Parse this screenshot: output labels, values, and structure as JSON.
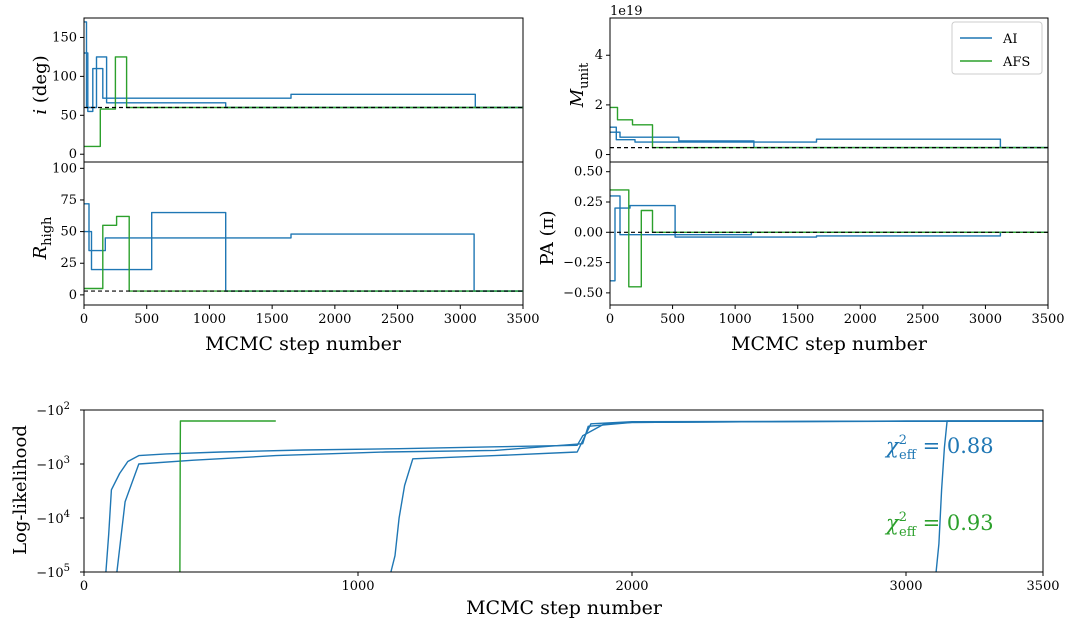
{
  "colors": {
    "AI": "#1f77b4",
    "AFS": "#2ca02c",
    "reference": "#000000"
  },
  "chart_data": [
    {
      "type": "line",
      "panel": "top-left",
      "ylabel_var": "i",
      "ylabel_unit": "(deg)",
      "xlim": [
        0,
        3500
      ],
      "ylim": [
        -10,
        175
      ],
      "yticks": [
        0,
        50,
        100,
        150
      ],
      "xticks": [],
      "reference_value": 60,
      "series": [
        {
          "name": "AI",
          "x": [
            0,
            30,
            30,
            70,
            70,
            150,
            150,
            560,
            560,
            1650,
            1650,
            3120,
            3120,
            3500
          ],
          "y": [
            130,
            130,
            55,
            55,
            110,
            110,
            72,
            72,
            72,
            72,
            77,
            77,
            60,
            60
          ]
        },
        {
          "name": "AI",
          "x": [
            0,
            20,
            20,
            100,
            100,
            180,
            180,
            1130,
            1130,
            3500
          ],
          "y": [
            170,
            170,
            60,
            60,
            125,
            125,
            66,
            66,
            60,
            60
          ]
        },
        {
          "name": "AFS",
          "x": [
            0,
            130,
            130,
            250,
            250,
            340,
            340,
            3500
          ],
          "y": [
            10,
            10,
            58,
            58,
            125,
            125,
            60,
            60
          ]
        }
      ]
    },
    {
      "type": "line",
      "panel": "bottom-left",
      "ylabel_var": "R",
      "ylabel_sub": "high",
      "xlim": [
        0,
        3500
      ],
      "ylim": [
        -8,
        105
      ],
      "yticks": [
        0,
        25,
        50,
        75,
        100
      ],
      "xticks": [
        "0",
        "500",
        "1000",
        "1500",
        "2000",
        "2500",
        "3000",
        "3500"
      ],
      "xticks_num": [
        0,
        500,
        1000,
        1500,
        2000,
        2500,
        3000,
        3500
      ],
      "xlabel": "MCMC step number",
      "reference_value": 3,
      "series": [
        {
          "name": "AI",
          "x": [
            0,
            40,
            40,
            170,
            170,
            1650,
            1650,
            3110,
            3110,
            3500
          ],
          "y": [
            72,
            72,
            35,
            35,
            45,
            45,
            48,
            48,
            3,
            3
          ]
        },
        {
          "name": "AI",
          "x": [
            0,
            60,
            60,
            540,
            540,
            1130,
            1130,
            3500
          ],
          "y": [
            50,
            50,
            20,
            20,
            65,
            65,
            3,
            3
          ]
        },
        {
          "name": "AFS",
          "x": [
            0,
            150,
            150,
            260,
            260,
            360,
            360,
            3500
          ],
          "y": [
            5,
            5,
            55,
            55,
            62,
            62,
            3,
            3
          ]
        }
      ]
    },
    {
      "type": "line",
      "panel": "top-right",
      "ylabel_var": "M",
      "ylabel_sub": "unit",
      "offset_text": "1e19",
      "xlim": [
        0,
        3500
      ],
      "ylim": [
        -0.3,
        5.5
      ],
      "yticks": [
        0,
        2,
        4
      ],
      "xticks": [],
      "reference_value": 0.28,
      "legend": {
        "placement": "top-right",
        "entries": [
          "AI",
          "AFS"
        ]
      },
      "series": [
        {
          "name": "AI",
          "x": [
            0,
            50,
            50,
            200,
            200,
            1650,
            1650,
            3120,
            3120,
            3500
          ],
          "y": [
            1.1,
            1.1,
            0.6,
            0.6,
            0.5,
            0.5,
            0.62,
            0.62,
            0.28,
            0.28
          ]
        },
        {
          "name": "AI",
          "x": [
            0,
            80,
            80,
            550,
            550,
            1150,
            1150,
            3500
          ],
          "y": [
            0.9,
            0.9,
            0.7,
            0.7,
            0.55,
            0.55,
            0.28,
            0.28
          ]
        },
        {
          "name": "AFS",
          "x": [
            0,
            60,
            60,
            180,
            180,
            340,
            340,
            3500
          ],
          "y": [
            1.9,
            1.9,
            1.4,
            1.4,
            1.2,
            1.2,
            0.28,
            0.28
          ]
        }
      ]
    },
    {
      "type": "line",
      "panel": "bottom-right",
      "ylabel_var": "PA",
      "ylabel_unit": "(π)",
      "xlim": [
        0,
        3500
      ],
      "ylim": [
        -0.6,
        0.58
      ],
      "yticks": [
        -0.5,
        -0.25,
        0.0,
        0.25,
        0.5
      ],
      "ytick_labels": [
        "−0.50",
        "−0.25",
        "0.00",
        "0.25",
        "0.50"
      ],
      "xticks": [
        "0",
        "500",
        "1000",
        "1500",
        "2000",
        "2500",
        "3000",
        "3500"
      ],
      "xticks_num": [
        0,
        500,
        1000,
        1500,
        2000,
        2500,
        3000,
        3500
      ],
      "xlabel": "MCMC step number",
      "reference_value": 0.0,
      "series": [
        {
          "name": "AI",
          "x": [
            0,
            40,
            40,
            160,
            160,
            520,
            520,
            1650,
            1650,
            3120,
            3120,
            3500
          ],
          "y": [
            -0.4,
            -0.4,
            0.2,
            0.2,
            0.22,
            0.22,
            -0.04,
            -0.04,
            -0.03,
            -0.03,
            0.0,
            0.0
          ]
        },
        {
          "name": "AI",
          "x": [
            0,
            80,
            80,
            1130,
            1130,
            3500
          ],
          "y": [
            0.3,
            0.3,
            -0.02,
            -0.02,
            0.0,
            0.0
          ]
        },
        {
          "name": "AFS",
          "x": [
            0,
            150,
            150,
            250,
            250,
            340,
            340,
            3500
          ],
          "y": [
            0.35,
            0.35,
            -0.45,
            -0.45,
            0.18,
            0.18,
            0.0,
            0.0
          ]
        }
      ]
    },
    {
      "type": "line",
      "panel": "bottom",
      "ylabel": "Log-likelihood",
      "yscale": "log (negative values)",
      "xlim": [
        0,
        3500
      ],
      "ylim": [
        -100000,
        -100
      ],
      "yticks": [
        -100,
        -1000,
        -10000,
        -100000
      ],
      "ytick_labels": [
        {
          "sign": "−",
          "base": "10",
          "exp": "2"
        },
        {
          "sign": "−",
          "base": "10",
          "exp": "3"
        },
        {
          "sign": "−",
          "base": "10",
          "exp": "4"
        },
        {
          "sign": "−",
          "base": "10",
          "exp": "5"
        }
      ],
      "xticks": [
        "0",
        "1000",
        "2000",
        "3000",
        "3500"
      ],
      "xticks_num": [
        0,
        1000,
        2000,
        3000,
        3500
      ],
      "xlabel": "MCMC step number",
      "annotations": [
        {
          "prefix": "χ",
          "sup": "2",
          "sub": "eff",
          "text": " =  0.88",
          "color_key": "AI"
        },
        {
          "prefix": "χ",
          "sup": "2",
          "sub": "eff",
          "text": " =  0.93",
          "color_key": "AFS"
        }
      ],
      "series": [
        {
          "name": "AI",
          "x": [
            80,
            90,
            100,
            130,
            160,
            200,
            300,
            500,
            800,
            1150,
            1500,
            1800,
            1820,
            1900,
            2000,
            2500,
            3000,
            3500
          ],
          "y": [
            -100000,
            -20000,
            -3000,
            -1500,
            -900,
            -700,
            -650,
            -600,
            -550,
            -520,
            -480,
            -450,
            -300,
            -180,
            -170,
            -165,
            -160,
            -160
          ]
        },
        {
          "name": "AI",
          "x": [
            120,
            150,
            200,
            400,
            700,
            1100,
            1500,
            1820,
            1840,
            2000,
            2500,
            3000,
            3500
          ],
          "y": [
            -100000,
            -5000,
            -1000,
            -850,
            -700,
            -600,
            -560,
            -420,
            -200,
            -170,
            -165,
            -162,
            -160
          ]
        },
        {
          "name": "AI",
          "x": [
            1120,
            1135,
            1150,
            1170,
            1200,
            1500,
            1800,
            1850,
            2000,
            3500
          ],
          "y": [
            -100000,
            -50000,
            -10000,
            -2500,
            -800,
            -700,
            -600,
            -180,
            -165,
            -160
          ]
        },
        {
          "name": "AI",
          "x": [
            3110,
            3120,
            3130,
            3140,
            3150,
            3500
          ],
          "y": [
            -100000,
            -30000,
            -3000,
            -500,
            -160,
            -160
          ]
        },
        {
          "name": "AFS",
          "x": [
            350,
            351,
            352,
            700
          ],
          "y": [
            -100000,
            -1000,
            -160,
            -160
          ]
        }
      ]
    }
  ]
}
